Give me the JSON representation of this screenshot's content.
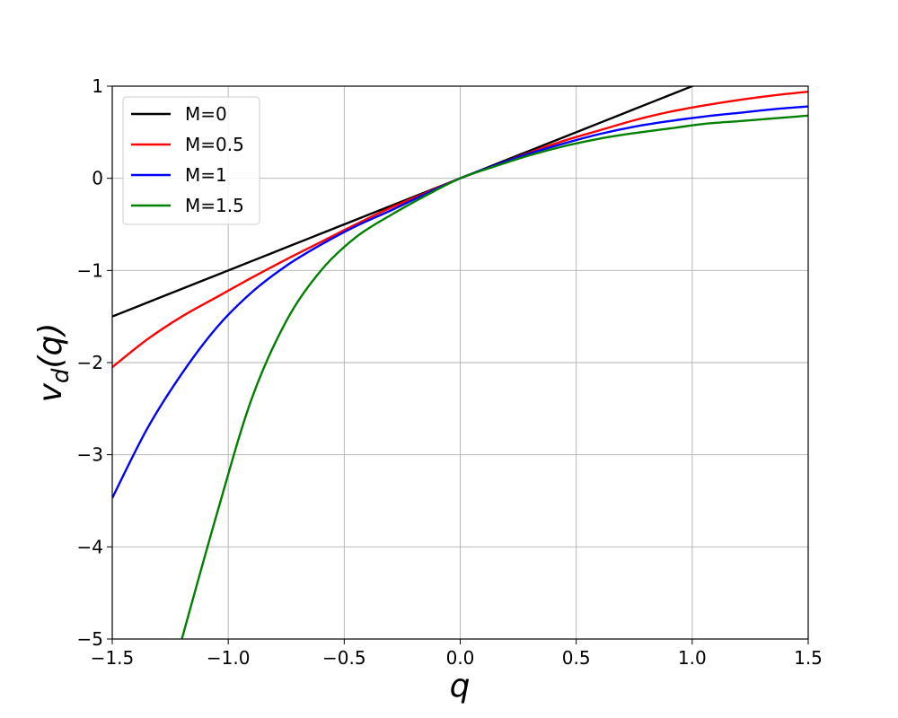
{
  "chart_data": {
    "type": "line",
    "xlabel": "q",
    "ylabel": "v_d(q)",
    "ylabel_main": "v",
    "ylabel_sub": "d",
    "ylabel_arg": "(q)",
    "xlim": [
      -1.5,
      1.5
    ],
    "ylim": [
      -5,
      1
    ],
    "xticks": [
      -1.5,
      -1.0,
      -0.5,
      0.0,
      0.5,
      1.0,
      1.5
    ],
    "xtick_labels": [
      "−1.5",
      "−1.0",
      "−0.5",
      "0.0",
      "0.5",
      "1.0",
      "1.5"
    ],
    "yticks": [
      1,
      0,
      -1,
      -2,
      -3,
      -4,
      -5
    ],
    "ytick_labels": [
      "1",
      "0",
      "−1",
      "−2",
      "−3",
      "−4",
      "−5"
    ],
    "grid": true,
    "legend_position": "top-left",
    "x": [
      -1.5,
      -1.35,
      -1.2,
      -1.05,
      -0.9,
      -0.75,
      -0.6,
      -0.45,
      -0.3,
      -0.15,
      0.0,
      0.15,
      0.3,
      0.45,
      0.6,
      0.75,
      0.9,
      1.05,
      1.2,
      1.35,
      1.5
    ],
    "series": [
      {
        "name": "M=0",
        "color": "#000000",
        "values": [
          -1.5,
          -1.35,
          -1.2,
          -1.05,
          -0.9,
          -0.75,
          -0.6,
          -0.45,
          -0.3,
          -0.15,
          0.0,
          0.15,
          0.3,
          0.45,
          0.6,
          0.75,
          0.9,
          1.05,
          1.2,
          1.35,
          1.5
        ]
      },
      {
        "name": "M=0.5",
        "color": "#ff0000",
        "values": [
          -2.05,
          -1.75,
          -1.5,
          -1.29,
          -1.08,
          -0.88,
          -0.69,
          -0.5,
          -0.32,
          -0.16,
          0.0,
          0.14,
          0.28,
          0.41,
          0.52,
          0.63,
          0.72,
          0.79,
          0.85,
          0.9,
          0.94
        ]
      },
      {
        "name": "M=1",
        "color": "#0000ff",
        "values": [
          -3.47,
          -2.72,
          -2.12,
          -1.62,
          -1.24,
          -0.95,
          -0.72,
          -0.52,
          -0.35,
          -0.17,
          0.0,
          0.14,
          0.27,
          0.38,
          0.48,
          0.56,
          0.62,
          0.67,
          0.71,
          0.75,
          0.78
        ]
      },
      {
        "name": "M=1.5",
        "color": "#008000",
        "values": [
          null,
          null,
          -5.0,
          -3.65,
          -2.4,
          -1.55,
          -1.0,
          -0.64,
          -0.4,
          -0.19,
          0.0,
          0.13,
          0.25,
          0.35,
          0.43,
          0.49,
          0.54,
          0.59,
          0.62,
          0.65,
          0.68
        ]
      }
    ]
  }
}
